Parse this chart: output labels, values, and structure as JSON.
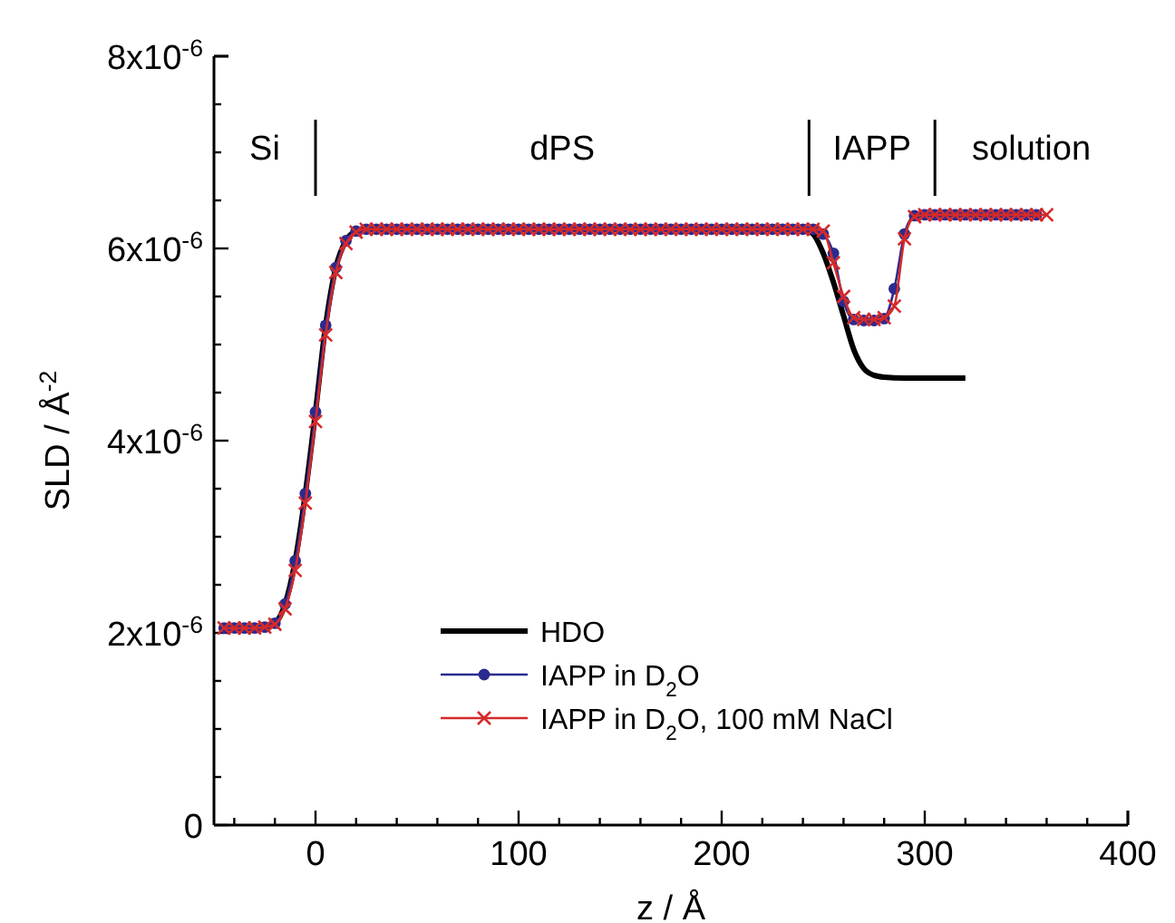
{
  "chart_data": {
    "type": "line",
    "xlabel": "z / Å",
    "ylabel": "SLD / Å$^{-2}$",
    "xlim": [
      -50,
      400
    ],
    "ylim": [
      0,
      8e-06
    ],
    "xticks": [
      {
        "value": -40,
        "label": null
      },
      {
        "value": -20,
        "label": null
      },
      0,
      {
        "value": 20,
        "label": null
      },
      {
        "value": 40,
        "label": null
      },
      {
        "value": 60,
        "label": null
      },
      {
        "value": 80,
        "label": null
      },
      100,
      {
        "value": 120,
        "label": null
      },
      {
        "value": 140,
        "label": null
      },
      {
        "value": 160,
        "label": null
      },
      {
        "value": 180,
        "label": null
      },
      200,
      {
        "value": 220,
        "label": null
      },
      {
        "value": 240,
        "label": null
      },
      {
        "value": 260,
        "label": null
      },
      {
        "value": 280,
        "label": null
      },
      300,
      {
        "value": 320,
        "label": null
      },
      {
        "value": 340,
        "label": null
      },
      {
        "value": 360,
        "label": null
      },
      {
        "value": 380,
        "label": null
      },
      400
    ],
    "yticks": [
      0,
      {
        "value": 5e-07,
        "label": null
      },
      {
        "value": 1e-06,
        "label": null
      },
      {
        "value": 1.5e-06,
        "label": null
      },
      {
        "value": 2e-06,
        "label": "2x10$^{-6}$"
      },
      {
        "value": 2.5e-06,
        "label": null
      },
      {
        "value": 3e-06,
        "label": null
      },
      {
        "value": 3.5e-06,
        "label": null
      },
      {
        "value": 4e-06,
        "label": "4x10$^{-6}$"
      },
      {
        "value": 4.5e-06,
        "label": null
      },
      {
        "value": 5e-06,
        "label": null
      },
      {
        "value": 5.5e-06,
        "label": null
      },
      {
        "value": 6e-06,
        "label": "6x10$^{-6}$"
      },
      {
        "value": 6.5e-06,
        "label": null
      },
      {
        "value": 7e-06,
        "label": null
      },
      {
        "value": 7.5e-06,
        "label": null
      },
      {
        "value": 8e-06,
        "label": "8x10$^{-6}$"
      }
    ],
    "grid": false,
    "legend": "bottom",
    "ref_lines": [
      {
        "axis": "x",
        "value": 0,
        "color": "#000000"
      },
      {
        "axis": "x",
        "value": 243,
        "color": "#000000"
      },
      {
        "axis": "x",
        "value": 305,
        "color": "#000000"
      }
    ],
    "annotations": [
      "Si",
      "dPS",
      "IAPP",
      "solution"
    ],
    "series": [
      {
        "name": "HDO",
        "color": "#000000",
        "marker": "none",
        "x": [
          -45,
          -40,
          -35,
          -30,
          -25,
          -20,
          -15,
          -10,
          -5,
          0,
          5,
          10,
          15,
          20,
          25,
          40,
          100,
          200,
          240,
          245,
          250,
          255,
          260,
          265,
          270,
          275,
          280,
          290,
          300,
          320
        ],
        "values": [
          2.05e-06,
          2.05e-06,
          2.05e-06,
          2.05e-06,
          2.06e-06,
          2.1e-06,
          2.3e-06,
          2.75e-06,
          3.45e-06,
          4.3e-06,
          5.2e-06,
          5.8e-06,
          6.08e-06,
          6.18e-06,
          6.2e-06,
          6.2e-06,
          6.2e-06,
          6.2e-06,
          6.2e-06,
          6.15e-06,
          5.95e-06,
          5.65e-06,
          5.3e-06,
          4.95e-06,
          4.75e-06,
          4.68e-06,
          4.66e-06,
          4.65e-06,
          4.65e-06,
          4.65e-06
        ]
      },
      {
        "name": "IAPP in D$_{2}$O",
        "color": "#2b2b8f",
        "marker": "circle",
        "x": [
          -45,
          -40,
          -35,
          -30,
          -25,
          -20,
          -15,
          -10,
          -5,
          0,
          5,
          10,
          15,
          20,
          25,
          30,
          35,
          40,
          45,
          50,
          55,
          60,
          65,
          70,
          75,
          80,
          85,
          90,
          95,
          100,
          105,
          110,
          115,
          120,
          125,
          130,
          135,
          140,
          145,
          150,
          155,
          160,
          165,
          170,
          175,
          180,
          185,
          190,
          195,
          200,
          205,
          210,
          215,
          220,
          225,
          230,
          235,
          240,
          245,
          250,
          255,
          260,
          265,
          270,
          275,
          280,
          285,
          290,
          295,
          300,
          305,
          310,
          315,
          320,
          325,
          330,
          335,
          340,
          345,
          350,
          355
        ],
        "values": [
          2.05e-06,
          2.05e-06,
          2.05e-06,
          2.05e-06,
          2.06e-06,
          2.1e-06,
          2.3e-06,
          2.75e-06,
          3.45e-06,
          4.3e-06,
          5.2e-06,
          5.8e-06,
          6.08e-06,
          6.18e-06,
          6.2e-06,
          6.2e-06,
          6.2e-06,
          6.2e-06,
          6.2e-06,
          6.2e-06,
          6.2e-06,
          6.2e-06,
          6.2e-06,
          6.2e-06,
          6.2e-06,
          6.2e-06,
          6.2e-06,
          6.2e-06,
          6.2e-06,
          6.2e-06,
          6.2e-06,
          6.2e-06,
          6.2e-06,
          6.2e-06,
          6.2e-06,
          6.2e-06,
          6.2e-06,
          6.2e-06,
          6.2e-06,
          6.2e-06,
          6.2e-06,
          6.2e-06,
          6.2e-06,
          6.2e-06,
          6.2e-06,
          6.2e-06,
          6.2e-06,
          6.2e-06,
          6.2e-06,
          6.2e-06,
          6.2e-06,
          6.2e-06,
          6.2e-06,
          6.2e-06,
          6.2e-06,
          6.2e-06,
          6.2e-06,
          6.2e-06,
          6.2e-06,
          6.15e-06,
          5.95e-06,
          5.45e-06,
          5.26e-06,
          5.25e-06,
          5.25e-06,
          5.27e-06,
          5.58e-06,
          6.15e-06,
          6.34e-06,
          6.35e-06,
          6.35e-06,
          6.35e-06,
          6.35e-06,
          6.35e-06,
          6.35e-06,
          6.35e-06,
          6.35e-06,
          6.35e-06,
          6.35e-06,
          6.35e-06,
          6.35e-06
        ]
      },
      {
        "name": "IAPP in D$_{2}$O, 100 mM NaCl",
        "color": "#d42a2a",
        "marker": "cross",
        "x": [
          -45,
          -40,
          -35,
          -30,
          -25,
          -20,
          -15,
          -10,
          -5,
          0,
          5,
          10,
          15,
          20,
          25,
          30,
          35,
          40,
          45,
          50,
          55,
          60,
          65,
          70,
          75,
          80,
          85,
          90,
          95,
          100,
          105,
          110,
          115,
          120,
          125,
          130,
          135,
          140,
          145,
          150,
          155,
          160,
          165,
          170,
          175,
          180,
          185,
          190,
          195,
          200,
          205,
          210,
          215,
          220,
          225,
          230,
          235,
          240,
          245,
          250,
          255,
          260,
          265,
          270,
          275,
          280,
          285,
          290,
          295,
          300,
          305,
          310,
          315,
          320,
          325,
          330,
          335,
          340,
          345,
          350,
          355,
          360
        ],
        "values": [
          2.05e-06,
          2.05e-06,
          2.05e-06,
          2.05e-06,
          2.06e-06,
          2.09e-06,
          2.25e-06,
          2.65e-06,
          3.35e-06,
          4.2e-06,
          5.1e-06,
          5.75e-06,
          6.05e-06,
          6.17e-06,
          6.2e-06,
          6.2e-06,
          6.2e-06,
          6.2e-06,
          6.2e-06,
          6.2e-06,
          6.2e-06,
          6.2e-06,
          6.2e-06,
          6.2e-06,
          6.2e-06,
          6.2e-06,
          6.2e-06,
          6.2e-06,
          6.2e-06,
          6.2e-06,
          6.2e-06,
          6.2e-06,
          6.2e-06,
          6.2e-06,
          6.2e-06,
          6.2e-06,
          6.2e-06,
          6.2e-06,
          6.2e-06,
          6.2e-06,
          6.2e-06,
          6.2e-06,
          6.2e-06,
          6.2e-06,
          6.2e-06,
          6.2e-06,
          6.2e-06,
          6.2e-06,
          6.2e-06,
          6.2e-06,
          6.2e-06,
          6.2e-06,
          6.2e-06,
          6.2e-06,
          6.2e-06,
          6.2e-06,
          6.2e-06,
          6.2e-06,
          6.2e-06,
          6.18e-06,
          5.85e-06,
          5.5e-06,
          5.28e-06,
          5.26e-06,
          5.26e-06,
          5.28e-06,
          5.4e-06,
          6.1e-06,
          6.33e-06,
          6.35e-06,
          6.35e-06,
          6.35e-06,
          6.35e-06,
          6.35e-06,
          6.35e-06,
          6.35e-06,
          6.35e-06,
          6.35e-06,
          6.35e-06,
          6.35e-06,
          6.35e-06,
          6.35e-06
        ]
      }
    ]
  }
}
